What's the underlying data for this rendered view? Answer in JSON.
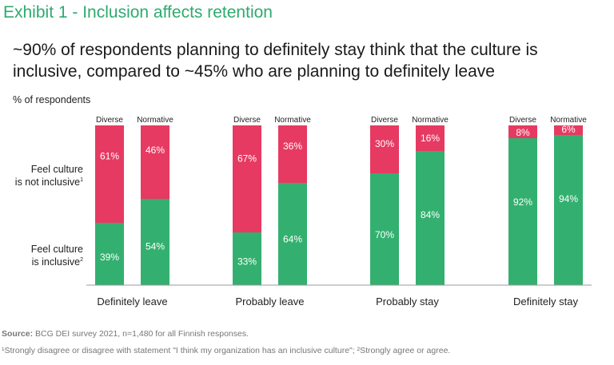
{
  "title": "Exhibit 1 - Inclusion affects retention",
  "headline": "~90% of respondents planning to definitely stay think that the culture is inclusive, compared to ~45% who are planning to definitely leave",
  "unit_label": "% of respondents",
  "row_labels": {
    "not_inclusive_line1": "Feel culture",
    "not_inclusive_line2": "is not inclusive",
    "not_inclusive_mark": "1",
    "inclusive_line1": "Feel culture",
    "inclusive_line2": "is inclusive",
    "inclusive_mark": "2"
  },
  "source_label": "Source:",
  "source_text": " BCG DEI survey 2021, n=1,480 for all Finnish responses.",
  "footnote": "¹Strongly disagree or disagree with statement \"I think my organization has an inclusive culture\"; ²Strongly agree or agree.",
  "colors": {
    "inclusive": "#33b06f",
    "not_inclusive": "#e63a62",
    "title": "#2eaa6e"
  },
  "chart_data": {
    "type": "bar",
    "stacked": true,
    "groups": [
      "Definitely leave",
      "Probably leave",
      "Probably stay",
      "Definitely stay"
    ],
    "sub_categories": [
      "Diverse",
      "Normative"
    ],
    "series": [
      {
        "name": "Feel culture is inclusive",
        "values": [
          [
            39,
            54
          ],
          [
            33,
            64
          ],
          [
            70,
            84
          ],
          [
            92,
            94
          ]
        ]
      },
      {
        "name": "Feel culture is not inclusive",
        "values": [
          [
            61,
            46
          ],
          [
            67,
            36
          ],
          [
            30,
            16
          ],
          [
            8,
            6
          ]
        ]
      }
    ],
    "value_suffix": "%",
    "ylim": [
      0,
      100
    ]
  }
}
